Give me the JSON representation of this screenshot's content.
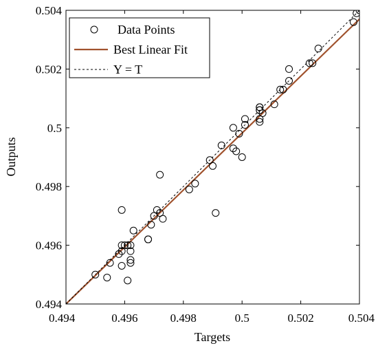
{
  "chart_data": {
    "type": "scatter",
    "title": "",
    "xlabel": "Targets",
    "ylabel": "Outputs",
    "xlim": [
      0.494,
      0.504
    ],
    "ylim": [
      0.494,
      0.504
    ],
    "xticks": [
      "0.494",
      "0.496",
      "0.498",
      "0.5",
      "0.502",
      "0.504"
    ],
    "yticks": [
      "0.494",
      "0.496",
      "0.498",
      "0.5",
      "0.502",
      "0.504"
    ],
    "xtick_values": [
      0.494,
      0.496,
      0.498,
      0.5,
      0.502,
      0.504
    ],
    "ytick_values": [
      0.494,
      0.496,
      0.498,
      0.5,
      0.502,
      0.504
    ],
    "grid": false,
    "legend_position": "top-left",
    "series": [
      {
        "name": "Data Points",
        "kind": "scatter",
        "marker": "open-circle",
        "color": "#000000",
        "points": [
          [
            0.495,
            0.495
          ],
          [
            0.4954,
            0.4949
          ],
          [
            0.4955,
            0.4954
          ],
          [
            0.4959,
            0.4953
          ],
          [
            0.4958,
            0.4957
          ],
          [
            0.4959,
            0.4958
          ],
          [
            0.4959,
            0.496
          ],
          [
            0.496,
            0.496
          ],
          [
            0.4961,
            0.496
          ],
          [
            0.4962,
            0.496
          ],
          [
            0.4962,
            0.4958
          ],
          [
            0.4962,
            0.4955
          ],
          [
            0.4962,
            0.4954
          ],
          [
            0.4961,
            0.4948
          ],
          [
            0.4959,
            0.4972
          ],
          [
            0.4963,
            0.4965
          ],
          [
            0.4968,
            0.4962
          ],
          [
            0.4968,
            0.4962
          ],
          [
            0.4969,
            0.4967
          ],
          [
            0.497,
            0.497
          ],
          [
            0.4971,
            0.4972
          ],
          [
            0.4972,
            0.4971
          ],
          [
            0.4973,
            0.4969
          ],
          [
            0.4972,
            0.4984
          ],
          [
            0.4982,
            0.4979
          ],
          [
            0.4984,
            0.4981
          ],
          [
            0.4989,
            0.4989
          ],
          [
            0.499,
            0.4987
          ],
          [
            0.4991,
            0.4971
          ],
          [
            0.4993,
            0.4994
          ],
          [
            0.4997,
            0.4993
          ],
          [
            0.4997,
            0.5
          ],
          [
            0.4998,
            0.4992
          ],
          [
            0.4999,
            0.4998
          ],
          [
            0.5,
            0.499
          ],
          [
            0.5001,
            0.5001
          ],
          [
            0.5001,
            0.5003
          ],
          [
            0.5006,
            0.5002
          ],
          [
            0.5006,
            0.5003
          ],
          [
            0.5006,
            0.5007
          ],
          [
            0.5006,
            0.5007
          ],
          [
            0.5006,
            0.5006
          ],
          [
            0.5006,
            0.5006
          ],
          [
            0.5007,
            0.5005
          ],
          [
            0.5011,
            0.5008
          ],
          [
            0.5013,
            0.5013
          ],
          [
            0.5014,
            0.5013
          ],
          [
            0.5016,
            0.5016
          ],
          [
            0.5016,
            0.502
          ],
          [
            0.5023,
            0.5022
          ],
          [
            0.5024,
            0.5022
          ],
          [
            0.5026,
            0.5027
          ],
          [
            0.5038,
            0.5036
          ],
          [
            0.5039,
            0.5039
          ],
          [
            0.504,
            0.504
          ]
        ]
      },
      {
        "name": "Best Linear Fit",
        "kind": "line",
        "color": "#a0522d",
        "x": [
          0.494,
          0.504
        ],
        "y": [
          0.494,
          0.5037
        ]
      },
      {
        "name": "Y = T",
        "kind": "line",
        "style": "dashed",
        "color": "#000000",
        "x": [
          0.494,
          0.504
        ],
        "y": [
          0.494,
          0.504
        ]
      }
    ]
  }
}
